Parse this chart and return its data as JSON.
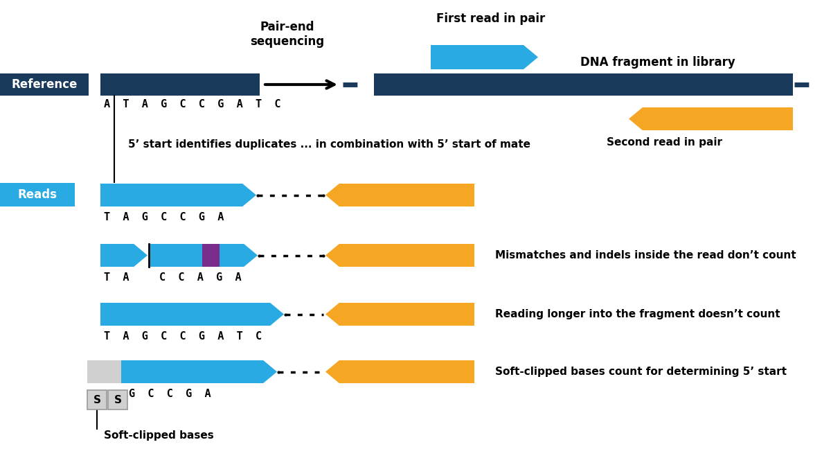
{
  "bg_color": "#ffffff",
  "dark_blue": "#1a3a5c",
  "light_blue": "#29aae2",
  "orange": "#f5a623",
  "purple": "#7b2d8b",
  "gray_light": "#d0d0d0",
  "gray_border": "#999999",
  "ref_label": "Reference",
  "reads_label": "Reads",
  "ref_seq": "A  T  A  G  C  C  G  A  T  C",
  "pair_end_text": "Pair-end\nsequencing",
  "first_read_text": "First read in pair",
  "dna_fragment_text": "DNA fragment in library",
  "second_read_text": "Second read in pair",
  "duplicate_text": "5’ start identifies duplicates ... in combination with 5’ start of mate",
  "row1_seq": "T  A  G  C  C  G  A",
  "row2_seq_a": "T  A",
  "row2_seq_b": "C  C  A  G  A",
  "row3_seq": "T  A  G  C  C  G  A  T  C",
  "mismatch_text": "Mismatches and indels inside the read don’t count",
  "longer_text": "Reading longer into the fragment doesn’t count",
  "softclip_text": "Soft-clipped bases count for determining 5’ start",
  "softclip_label": "Soft-clipped bases"
}
